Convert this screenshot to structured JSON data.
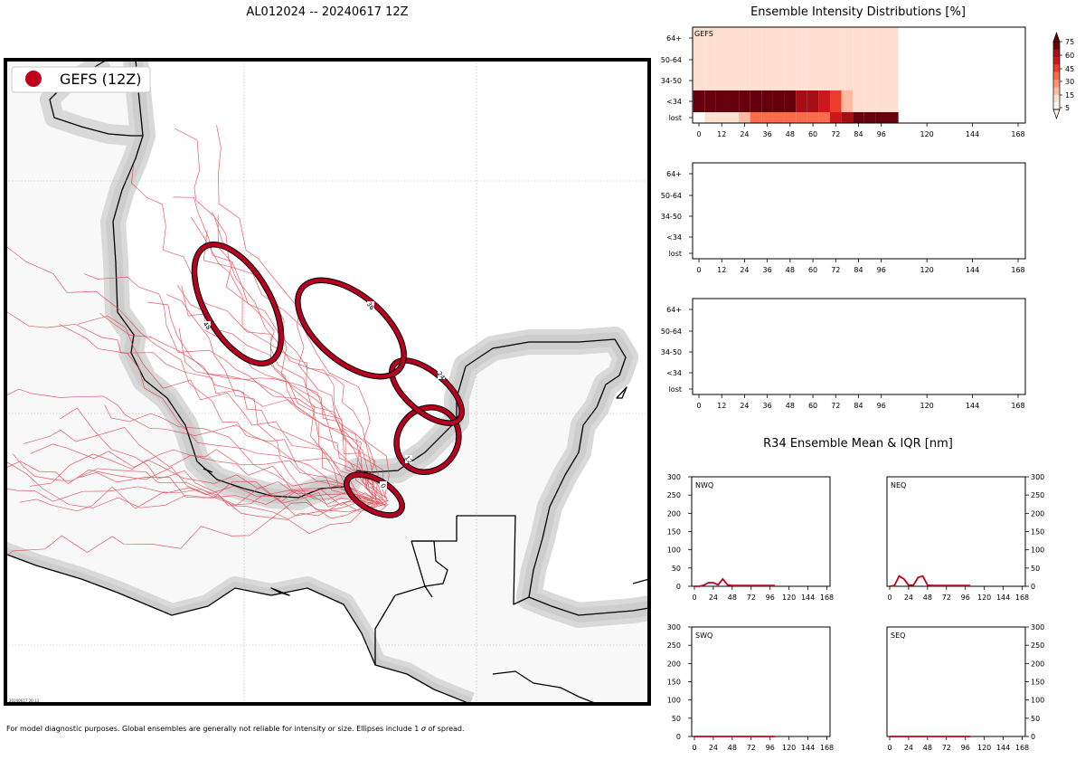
{
  "map": {
    "title": "AL012024 -- 20240617 12Z",
    "legend_label": "GEFS (12Z)",
    "footnote_pre": "For model diagnostic purposes. Global ensembles are generally not reliable for intensity or size. Ellipses include 1 ",
    "footnote_sigma": "σ",
    "footnote_post": " of spread.",
    "stamp": "20240617 20:13",
    "colors": {
      "track": "#e0424c",
      "ellipse": "#b5001f",
      "land_shadow": "#cfcfcf",
      "land": "#f8f8f8"
    },
    "ellipse_labels": [
      "0",
      "12",
      "24",
      "36",
      "48"
    ]
  },
  "intensity": {
    "title": "Ensemble Intensity Distributions [%]",
    "row_labels": [
      "64+",
      "50-64",
      "34-50",
      "<34",
      "lost"
    ],
    "x_ticks": [
      "0",
      "12",
      "24",
      "36",
      "48",
      "60",
      "72",
      "84",
      "96",
      "120",
      "144",
      "168"
    ],
    "panels": [
      {
        "label": "GEFS"
      },
      {
        "label": ""
      },
      {
        "label": ""
      }
    ],
    "colorbar_ticks": [
      "75",
      "60",
      "45",
      "30",
      "15",
      "5"
    ],
    "colorbar_colors": [
      "#fff5f0",
      "#fee0d2",
      "#fcbba1",
      "#fc9272",
      "#fb6a4a",
      "#ef3b2c",
      "#cb181d",
      "#a50f15",
      "#67000d"
    ]
  },
  "r34": {
    "title": "R34 Ensemble Mean & IQR [nm]",
    "y_ticks": [
      "300",
      "250",
      "200",
      "150",
      "100",
      "50",
      "0"
    ],
    "x_ticks": [
      "0",
      "24",
      "48",
      "72",
      "96",
      "120",
      "144",
      "168"
    ],
    "panel_labels": [
      "NWQ",
      "NEQ",
      "SWQ",
      "SEQ"
    ],
    "line_color": "#c0001a"
  },
  "chart_data": [
    {
      "type": "heatmap",
      "title": "Ensemble Intensity Distributions [%]",
      "panel": "GEFS",
      "x": [
        0,
        6,
        12,
        18,
        24,
        30,
        36,
        42,
        48,
        54,
        60,
        66,
        72,
        78,
        84,
        90,
        96,
        102
      ],
      "rows": [
        "64+",
        "50-64",
        "34-50",
        "<34",
        "lost"
      ],
      "values": [
        [
          2,
          2,
          2,
          2,
          2,
          2,
          2,
          2,
          2,
          2,
          2,
          2,
          2,
          2,
          2,
          2,
          2,
          2
        ],
        [
          2,
          2,
          2,
          2,
          2,
          2,
          2,
          2,
          2,
          2,
          2,
          2,
          2,
          2,
          2,
          2,
          2,
          2
        ],
        [
          2,
          2,
          2,
          2,
          2,
          2,
          2,
          2,
          2,
          2,
          2,
          2,
          2,
          2,
          2,
          2,
          2,
          2
        ],
        [
          100,
          100,
          97,
          97,
          94,
          94,
          90,
          90,
          90,
          87,
          84,
          65,
          45,
          14,
          2,
          2,
          2,
          2
        ],
        [
          0,
          3,
          3,
          3,
          6,
          32,
          32,
          32,
          32,
          32,
          32,
          35,
          65,
          82,
          95,
          95,
          95,
          95
        ]
      ],
      "colorbar": [
        5,
        15,
        30,
        45,
        60,
        75
      ]
    },
    {
      "type": "line",
      "title": "R34 Ensemble Mean & IQR [nm]",
      "panel": "NWQ",
      "x": [
        0,
        6,
        12,
        18,
        24,
        30,
        36,
        42,
        48,
        54,
        60,
        66,
        72,
        78,
        84,
        90,
        96,
        102
      ],
      "y": [
        0,
        0,
        3,
        10,
        10,
        4,
        20,
        4,
        2,
        2,
        2,
        2,
        2,
        2,
        2,
        2,
        2,
        2
      ],
      "ylim": [
        0,
        300
      ],
      "xlim": [
        0,
        172
      ]
    },
    {
      "type": "line",
      "panel": "NEQ",
      "x": [
        0,
        6,
        12,
        18,
        24,
        30,
        36,
        42,
        48,
        54,
        60,
        66,
        72,
        78,
        84,
        90,
        96,
        102
      ],
      "y": [
        0,
        2,
        28,
        20,
        3,
        3,
        24,
        28,
        3,
        2,
        2,
        2,
        2,
        2,
        2,
        2,
        2,
        2
      ],
      "ylim": [
        0,
        300
      ],
      "xlim": [
        0,
        172
      ]
    },
    {
      "type": "line",
      "panel": "SWQ",
      "x": [
        0,
        6,
        12,
        18,
        24,
        30,
        36,
        42,
        48,
        54,
        60,
        66,
        72,
        78,
        84,
        90,
        96,
        102
      ],
      "y": [
        0,
        0,
        0,
        0,
        0,
        0,
        0,
        0,
        0,
        0,
        0,
        0,
        0,
        0,
        0,
        0,
        0,
        0
      ],
      "ylim": [
        0,
        300
      ],
      "xlim": [
        0,
        172
      ]
    },
    {
      "type": "line",
      "panel": "SEQ",
      "x": [
        0,
        6,
        12,
        18,
        24,
        30,
        36,
        42,
        48,
        54,
        60,
        66,
        72,
        78,
        84,
        90,
        96,
        102
      ],
      "y": [
        0,
        0,
        0,
        0,
        0,
        0,
        0,
        0,
        0,
        0,
        0,
        0,
        0,
        0,
        0,
        0,
        0,
        0
      ],
      "ylim": [
        0,
        300
      ],
      "xlim": [
        0,
        172
      ]
    }
  ]
}
